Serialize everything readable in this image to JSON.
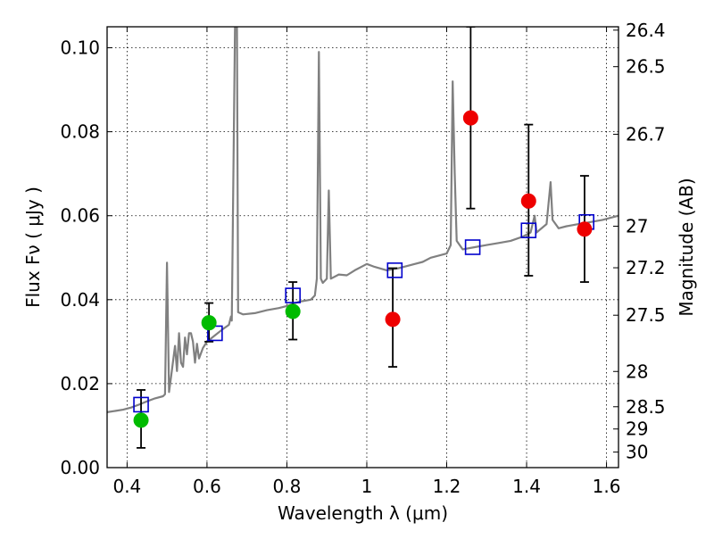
{
  "chart_data": {
    "type": "scatter",
    "xlabel": "Wavelength  λ (μm)",
    "ylabel": "Flux  Fν  ( μJy )",
    "ylabel_right": "Magnitude (AB)",
    "xlim": [
      0.35,
      1.63
    ],
    "ylim": [
      0.0,
      0.105
    ],
    "grid": true,
    "x_ticks": [
      {
        "value": 0.4,
        "label": "0.4"
      },
      {
        "value": 0.6,
        "label": "0.6"
      },
      {
        "value": 0.8,
        "label": "0.8"
      },
      {
        "value": 1.0,
        "label": "1"
      },
      {
        "value": 1.2,
        "label": "1.2"
      },
      {
        "value": 1.4,
        "label": "1.4"
      },
      {
        "value": 1.6,
        "label": "1.6"
      }
    ],
    "y_ticks": [
      {
        "value": 0.0,
        "label": "0.00"
      },
      {
        "value": 0.02,
        "label": "0.02"
      },
      {
        "value": 0.04,
        "label": "0.04"
      },
      {
        "value": 0.06,
        "label": "0.06"
      },
      {
        "value": 0.08,
        "label": "0.08"
      },
      {
        "value": 0.1,
        "label": "0.10"
      }
    ],
    "right_ticks": [
      {
        "flux": 0.1042,
        "label": "26.4"
      },
      {
        "flux": 0.0955,
        "label": "26.5"
      },
      {
        "flux": 0.0794,
        "label": "26.7"
      },
      {
        "flux": 0.0575,
        "label": "27"
      },
      {
        "flux": 0.0476,
        "label": "27.2"
      },
      {
        "flux": 0.0363,
        "label": "27.5"
      },
      {
        "flux": 0.0229,
        "label": "28"
      },
      {
        "flux": 0.0145,
        "label": "28.5"
      },
      {
        "flux": 0.0092,
        "label": "29"
      },
      {
        "flux": 0.0037,
        "label": "30"
      }
    ],
    "series": [
      {
        "kind": "line",
        "color": "#808080",
        "points": [
          [
            0.35,
            0.0132
          ],
          [
            0.37,
            0.0135
          ],
          [
            0.39,
            0.0138
          ],
          [
            0.41,
            0.0143
          ],
          [
            0.43,
            0.015
          ],
          [
            0.45,
            0.0158
          ],
          [
            0.47,
            0.0165
          ],
          [
            0.49,
            0.017
          ],
          [
            0.495,
            0.0175
          ],
          [
            0.5,
            0.0488
          ],
          [
            0.505,
            0.018
          ],
          [
            0.51,
            0.0215
          ],
          [
            0.52,
            0.029
          ],
          [
            0.525,
            0.023
          ],
          [
            0.53,
            0.032
          ],
          [
            0.535,
            0.025
          ],
          [
            0.54,
            0.024
          ],
          [
            0.545,
            0.031
          ],
          [
            0.55,
            0.027
          ],
          [
            0.555,
            0.032
          ],
          [
            0.56,
            0.032
          ],
          [
            0.565,
            0.03
          ],
          [
            0.57,
            0.025
          ],
          [
            0.575,
            0.0295
          ],
          [
            0.58,
            0.026
          ],
          [
            0.59,
            0.0285
          ],
          [
            0.6,
            0.03
          ],
          [
            0.62,
            0.0315
          ],
          [
            0.64,
            0.033
          ],
          [
            0.655,
            0.034
          ],
          [
            0.66,
            0.036
          ],
          [
            0.662,
            0.035
          ],
          [
            0.665,
            0.06
          ],
          [
            0.67,
            0.105
          ],
          [
            0.675,
            0.105
          ],
          [
            0.678,
            0.037
          ],
          [
            0.69,
            0.0365
          ],
          [
            0.72,
            0.0368
          ],
          [
            0.75,
            0.0375
          ],
          [
            0.78,
            0.038
          ],
          [
            0.8,
            0.0385
          ],
          [
            0.83,
            0.0395
          ],
          [
            0.86,
            0.04
          ],
          [
            0.87,
            0.041
          ],
          [
            0.875,
            0.045
          ],
          [
            0.88,
            0.099
          ],
          [
            0.885,
            0.045
          ],
          [
            0.89,
            0.044
          ],
          [
            0.9,
            0.045
          ],
          [
            0.905,
            0.066
          ],
          [
            0.91,
            0.045
          ],
          [
            0.93,
            0.046
          ],
          [
            0.95,
            0.0458
          ],
          [
            0.97,
            0.047
          ],
          [
            0.99,
            0.048
          ],
          [
            1.0,
            0.0485
          ],
          [
            1.02,
            0.0478
          ],
          [
            1.05,
            0.047
          ],
          [
            1.08,
            0.0475
          ],
          [
            1.1,
            0.048
          ],
          [
            1.12,
            0.0485
          ],
          [
            1.14,
            0.049
          ],
          [
            1.16,
            0.05
          ],
          [
            1.18,
            0.0505
          ],
          [
            1.2,
            0.051
          ],
          [
            1.21,
            0.053
          ],
          [
            1.215,
            0.092
          ],
          [
            1.22,
            0.07
          ],
          [
            1.225,
            0.054
          ],
          [
            1.24,
            0.052
          ],
          [
            1.27,
            0.0525
          ],
          [
            1.3,
            0.053
          ],
          [
            1.33,
            0.0535
          ],
          [
            1.36,
            0.054
          ],
          [
            1.39,
            0.055
          ],
          [
            1.41,
            0.056
          ],
          [
            1.42,
            0.06
          ],
          [
            1.425,
            0.056
          ],
          [
            1.45,
            0.058
          ],
          [
            1.46,
            0.068
          ],
          [
            1.465,
            0.059
          ],
          [
            1.48,
            0.057
          ],
          [
            1.5,
            0.0575
          ],
          [
            1.53,
            0.058
          ],
          [
            1.56,
            0.0585
          ],
          [
            1.59,
            0.059
          ],
          [
            1.61,
            0.0595
          ],
          [
            1.63,
            0.06
          ]
        ]
      },
      {
        "kind": "points",
        "marker": "square",
        "color": "#0000cc",
        "points": [
          [
            0.435,
            0.015
          ],
          [
            0.62,
            0.032
          ],
          [
            0.815,
            0.041
          ],
          [
            1.07,
            0.047
          ],
          [
            1.265,
            0.0525
          ],
          [
            1.405,
            0.0565
          ],
          [
            1.55,
            0.0585
          ]
        ]
      },
      {
        "kind": "points",
        "marker": "circle",
        "color": "#00bb00",
        "points": [
          {
            "x": 0.435,
            "y": 0.0113,
            "yerr_low": 0.0047,
            "yerr_high": 0.0185
          },
          {
            "x": 0.605,
            "y": 0.0345,
            "yerr_low": 0.03,
            "yerr_high": 0.0392
          },
          {
            "x": 0.815,
            "y": 0.0372,
            "yerr_low": 0.0305,
            "yerr_high": 0.0442
          }
        ]
      },
      {
        "kind": "points",
        "marker": "circle",
        "color": "#ee0000",
        "points": [
          {
            "x": 1.065,
            "y": 0.0353,
            "yerr_low": 0.024,
            "yerr_high": 0.0475
          },
          {
            "x": 1.26,
            "y": 0.0833,
            "yerr_low": 0.0617,
            "yerr_high": 0.105
          },
          {
            "x": 1.405,
            "y": 0.0635,
            "yerr_low": 0.0457,
            "yerr_high": 0.0817
          },
          {
            "x": 1.545,
            "y": 0.0568,
            "yerr_low": 0.0442,
            "yerr_high": 0.0695
          }
        ]
      }
    ]
  }
}
